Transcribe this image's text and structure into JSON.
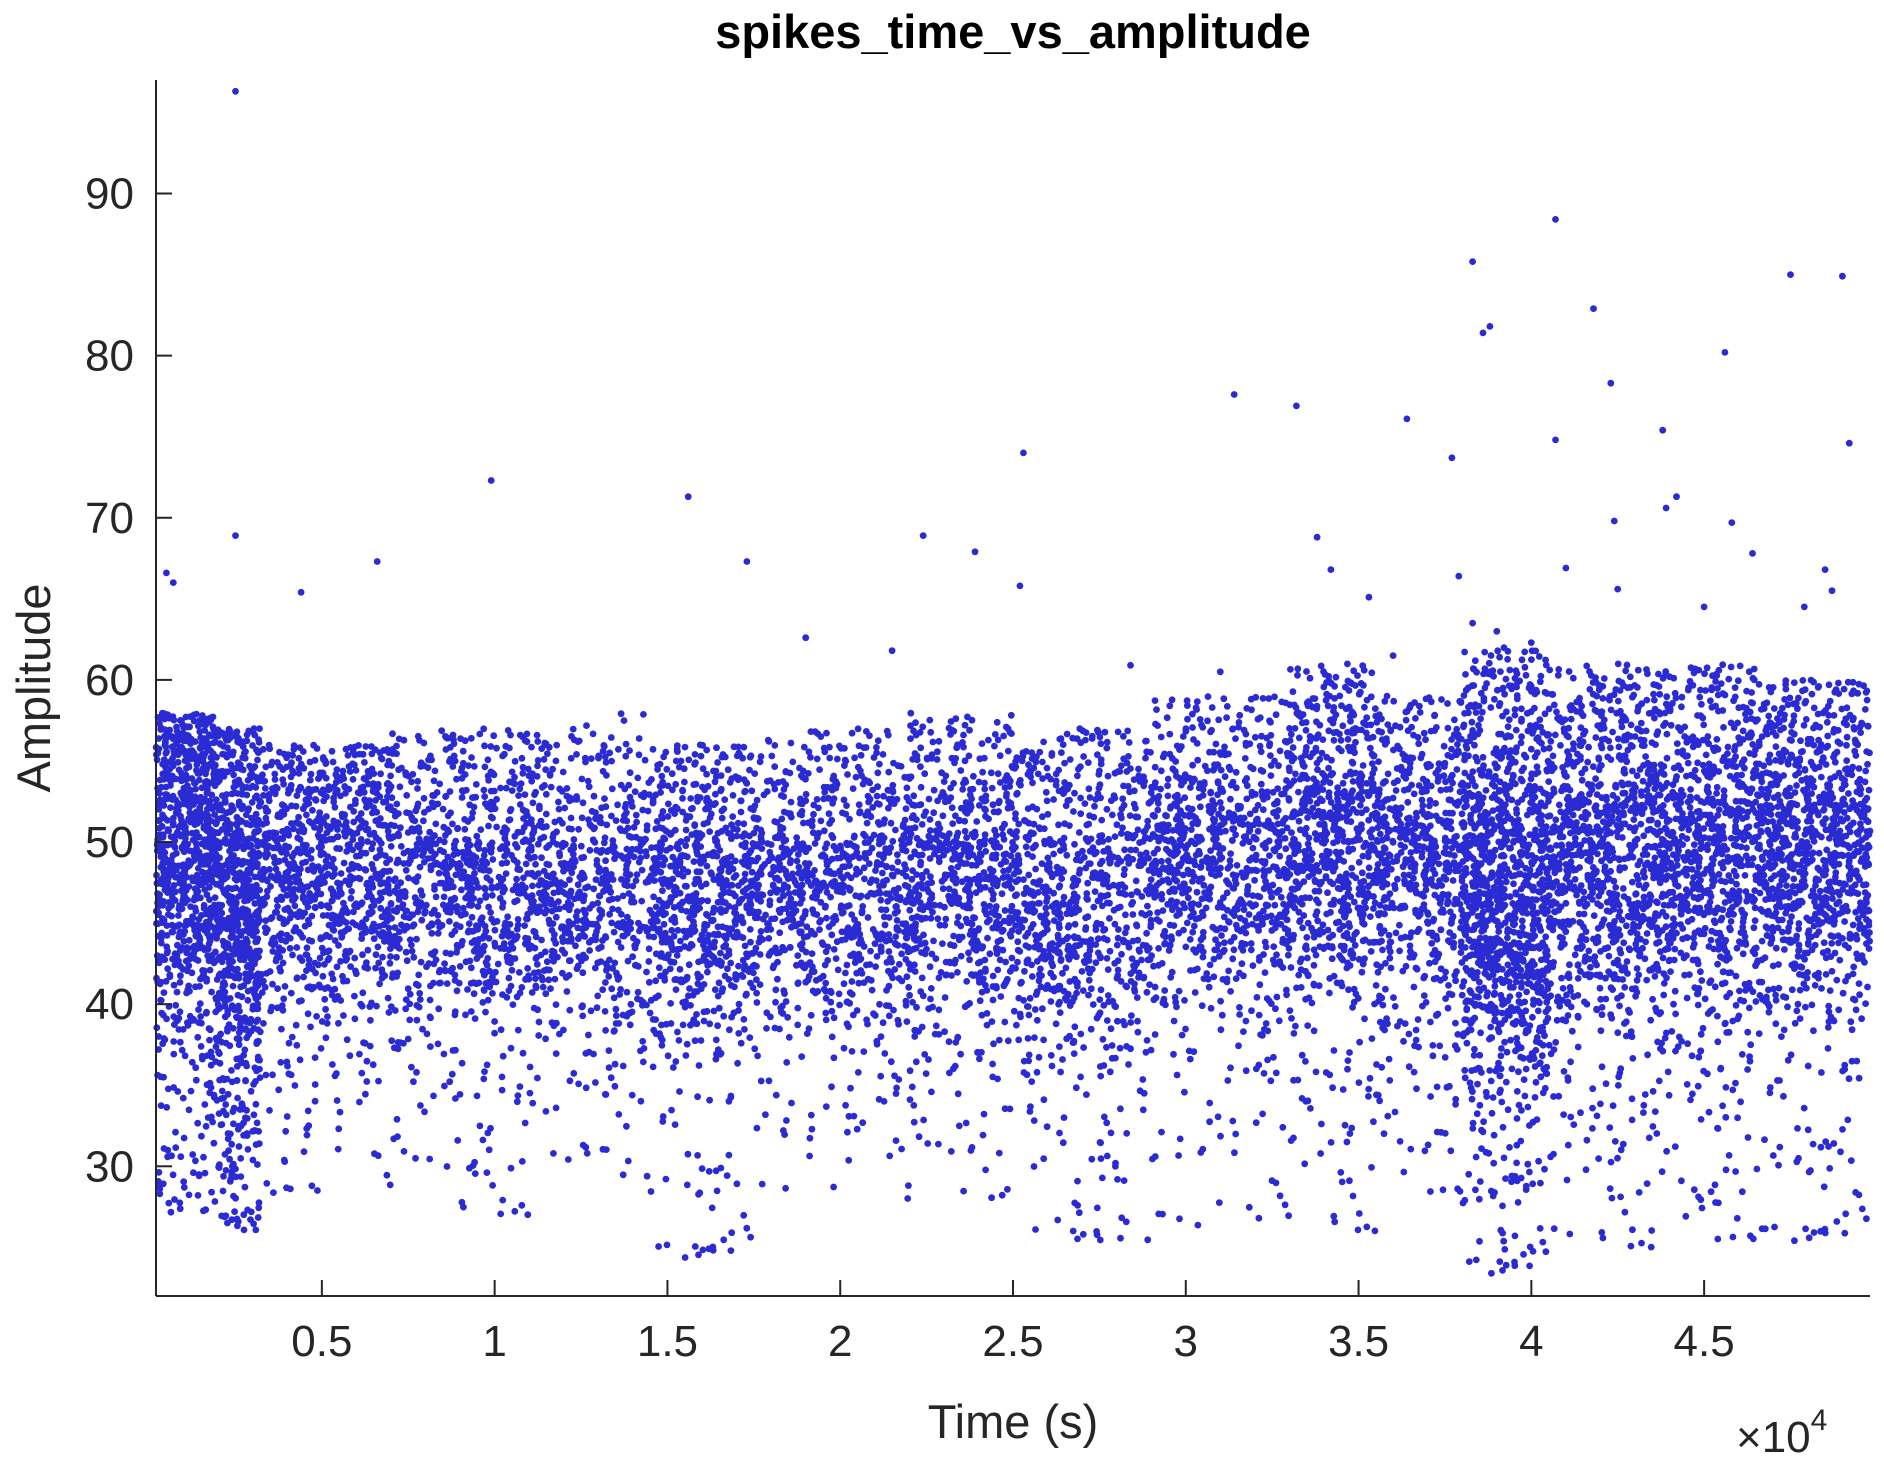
{
  "chart_data": {
    "type": "scatter",
    "title": "spikes_time_vs_amplitude",
    "xlabel": "Time (s)",
    "ylabel": "Amplitude",
    "x_multiplier": {
      "base": "×10",
      "exponent": "4"
    },
    "xlim": [
      0.02,
      4.98
    ],
    "ylim": [
      22,
      97
    ],
    "x_ticks": [
      0.5,
      1,
      1.5,
      2,
      2.5,
      3,
      3.5,
      4,
      4.5
    ],
    "x_tick_labels": [
      "0.5",
      "1",
      "1.5",
      "2",
      "2.5",
      "3",
      "3.5",
      "4",
      "4.5"
    ],
    "y_ticks": [
      30,
      40,
      50,
      60,
      70,
      80,
      90
    ],
    "y_tick_labels": [
      "30",
      "40",
      "50",
      "60",
      "70",
      "80",
      "90"
    ],
    "grid": false,
    "legend": "none",
    "marker_color": "#2B2BD4",
    "series": [
      {
        "x": [
          0.25,
          0.25,
          0.99,
          1.56,
          2.24,
          2.39,
          2.52,
          2.53,
          3.14,
          3.32,
          3.38,
          3.42,
          3.53,
          3.64,
          3.77,
          3.79,
          3.83,
          3.83,
          3.86,
          3.88,
          3.9,
          4.07,
          4.07,
          4.1,
          4.18,
          4.23,
          4.24,
          4.25,
          4.38,
          4.39,
          4.42,
          4.56,
          4.58,
          4.64,
          4.75,
          4.79,
          4.87,
          4.9,
          4.92,
          0.05,
          0.07,
          0.66,
          0.44,
          1.73,
          1.9,
          2.15,
          2.84,
          3.1,
          3.6,
          4.0,
          4.5,
          4.85
        ],
        "y": [
          96.3,
          68.9,
          72.3,
          71.3,
          68.9,
          67.9,
          65.8,
          74.0,
          77.6,
          76.9,
          68.8,
          66.8,
          65.1,
          76.1,
          73.7,
          66.4,
          85.8,
          63.5,
          81.4,
          81.8,
          63.0,
          88.4,
          74.8,
          66.9,
          82.9,
          78.3,
          69.8,
          65.6,
          75.4,
          70.6,
          71.3,
          80.2,
          69.7,
          67.8,
          85.0,
          64.5,
          65.5,
          84.9,
          74.6,
          66.6,
          66.0,
          67.3,
          65.4,
          67.3,
          62.6,
          61.8,
          60.9,
          60.5,
          61.5,
          62.3,
          64.5,
          66.8
        ]
      }
    ],
    "density_bands": [
      {
        "x": [
          0.02,
          0.2
        ],
        "center": 49.5,
        "spread": 5.5,
        "tail_low": 27,
        "tail_high": 58,
        "count": 900
      },
      {
        "x": [
          0.2,
          0.32
        ],
        "center": 46.5,
        "spread": 6.5,
        "tail_low": 26,
        "tail_high": 57,
        "count": 700
      },
      {
        "x": [
          0.32,
          0.7
        ],
        "center": 48.5,
        "spread": 5.0,
        "tail_low": 28,
        "tail_high": 56,
        "count": 900
      },
      {
        "x": [
          0.7,
          1.1
        ],
        "center": 48.0,
        "spread": 4.5,
        "tail_low": 27,
        "tail_high": 57,
        "count": 800
      },
      {
        "x": [
          1.1,
          1.45
        ],
        "center": 47.5,
        "spread": 4.5,
        "tail_low": 29,
        "tail_high": 58,
        "count": 650
      },
      {
        "x": [
          1.45,
          1.75
        ],
        "center": 47.0,
        "spread": 5.0,
        "tail_low": 24,
        "tail_high": 56,
        "count": 700
      },
      {
        "x": [
          1.75,
          2.2
        ],
        "center": 47.5,
        "spread": 4.5,
        "tail_low": 28,
        "tail_high": 57,
        "count": 850
      },
      {
        "x": [
          2.2,
          2.5
        ],
        "center": 48.5,
        "spread": 4.5,
        "tail_low": 28,
        "tail_high": 58,
        "count": 650
      },
      {
        "x": [
          2.5,
          2.9
        ],
        "center": 47.0,
        "spread": 5.5,
        "tail_low": 25,
        "tail_high": 57,
        "count": 800
      },
      {
        "x": [
          2.9,
          3.3
        ],
        "center": 49.0,
        "spread": 5.0,
        "tail_low": 26,
        "tail_high": 59,
        "count": 850
      },
      {
        "x": [
          3.3,
          3.55
        ],
        "center": 51.0,
        "spread": 5.0,
        "tail_low": 26,
        "tail_high": 61,
        "count": 700
      },
      {
        "x": [
          3.55,
          3.8
        ],
        "center": 49.5,
        "spread": 5.0,
        "tail_low": 28,
        "tail_high": 59,
        "count": 600
      },
      {
        "x": [
          3.8,
          4.05
        ],
        "center": 47.5,
        "spread": 7.0,
        "tail_low": 23,
        "tail_high": 62,
        "count": 1200
      },
      {
        "x": [
          4.05,
          4.35
        ],
        "center": 50.0,
        "spread": 5.5,
        "tail_low": 25,
        "tail_high": 61,
        "count": 900
      },
      {
        "x": [
          4.35,
          4.65
        ],
        "center": 50.0,
        "spread": 5.5,
        "tail_low": 25,
        "tail_high": 61,
        "count": 900
      },
      {
        "x": [
          4.65,
          4.98
        ],
        "center": 50.0,
        "spread": 5.5,
        "tail_low": 25,
        "tail_high": 60,
        "count": 1000
      }
    ]
  }
}
